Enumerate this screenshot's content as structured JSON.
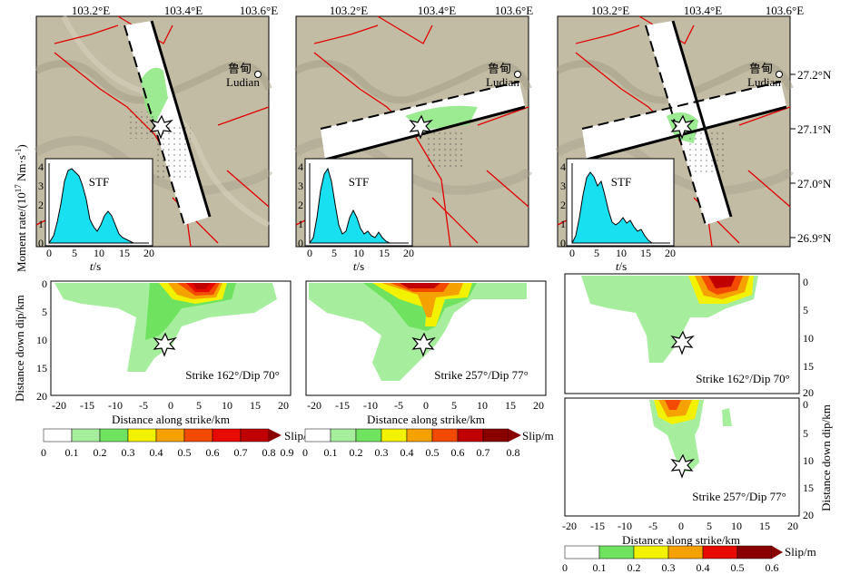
{
  "maps": {
    "lon_labels": [
      "103.2°E",
      "103.4°E",
      "103.6°E"
    ],
    "lat_labels": [
      "27.2°N",
      "27.1°N",
      "27.0°N",
      "26.9°N"
    ],
    "city_cn": "鲁甸",
    "city_en": "Ludian"
  },
  "stf": {
    "title": "STF",
    "ylabel": "Moment rate/(10",
    "ylabel_exp": "17",
    "ylabel_unit": " Nm·s",
    "ylabel_unit_exp": "-1",
    "ylabel_close": ")",
    "xlabel_t": "t",
    "xlabel_unit": "/s",
    "xticks": [
      "0",
      "5",
      "10",
      "15",
      "20"
    ],
    "yticks": [
      "0",
      "1",
      "2",
      "3",
      "4"
    ]
  },
  "slip": {
    "xlabel": "Distance along strike/km",
    "ylabel": "Distance down dip/km",
    "xticks": [
      "-20",
      "-15",
      "-10",
      "-5",
      "0",
      "5",
      "10",
      "15",
      "20"
    ],
    "yticks": [
      "0",
      "5",
      "10",
      "15",
      "20"
    ],
    "planes": [
      {
        "id": "a",
        "caption": "Strike 162°/Dip 70°"
      },
      {
        "id": "b",
        "caption": "Strike 257°/Dip 77°"
      },
      {
        "id": "c1",
        "caption": "Strike 162°/Dip 70°"
      },
      {
        "id": "c2",
        "caption": "Strike 257°/Dip 77°"
      }
    ]
  },
  "colorbars": [
    {
      "label": "Slip/m",
      "ticks": [
        "0",
        "0.1",
        "0.2",
        "0.3",
        "0.4",
        "0.5",
        "0.6",
        "0.7",
        "0.8",
        "0.9"
      ]
    },
    {
      "label": "Slip/m",
      "ticks": [
        "0",
        "0.1",
        "0.2",
        "0.3",
        "0.4",
        "0.5",
        "0.6",
        "0.7",
        "0.8"
      ]
    },
    {
      "label": "Slip/m",
      "ticks": [
        "0",
        "0.1",
        "0.2",
        "0.3",
        "0.4",
        "0.5",
        "0.6"
      ]
    }
  ],
  "colors": {
    "c0": "#ffffff",
    "c1": "#a6ee9e",
    "c2": "#6fe35f",
    "c3": "#f2f200",
    "c4": "#f5a100",
    "c5": "#f24a00",
    "c6": "#e60a00",
    "c7": "#c00000",
    "c8": "#8a0000",
    "stf_fill": "#19e0f0",
    "fault": "#e00000",
    "terrain": "#c3bca5"
  }
}
